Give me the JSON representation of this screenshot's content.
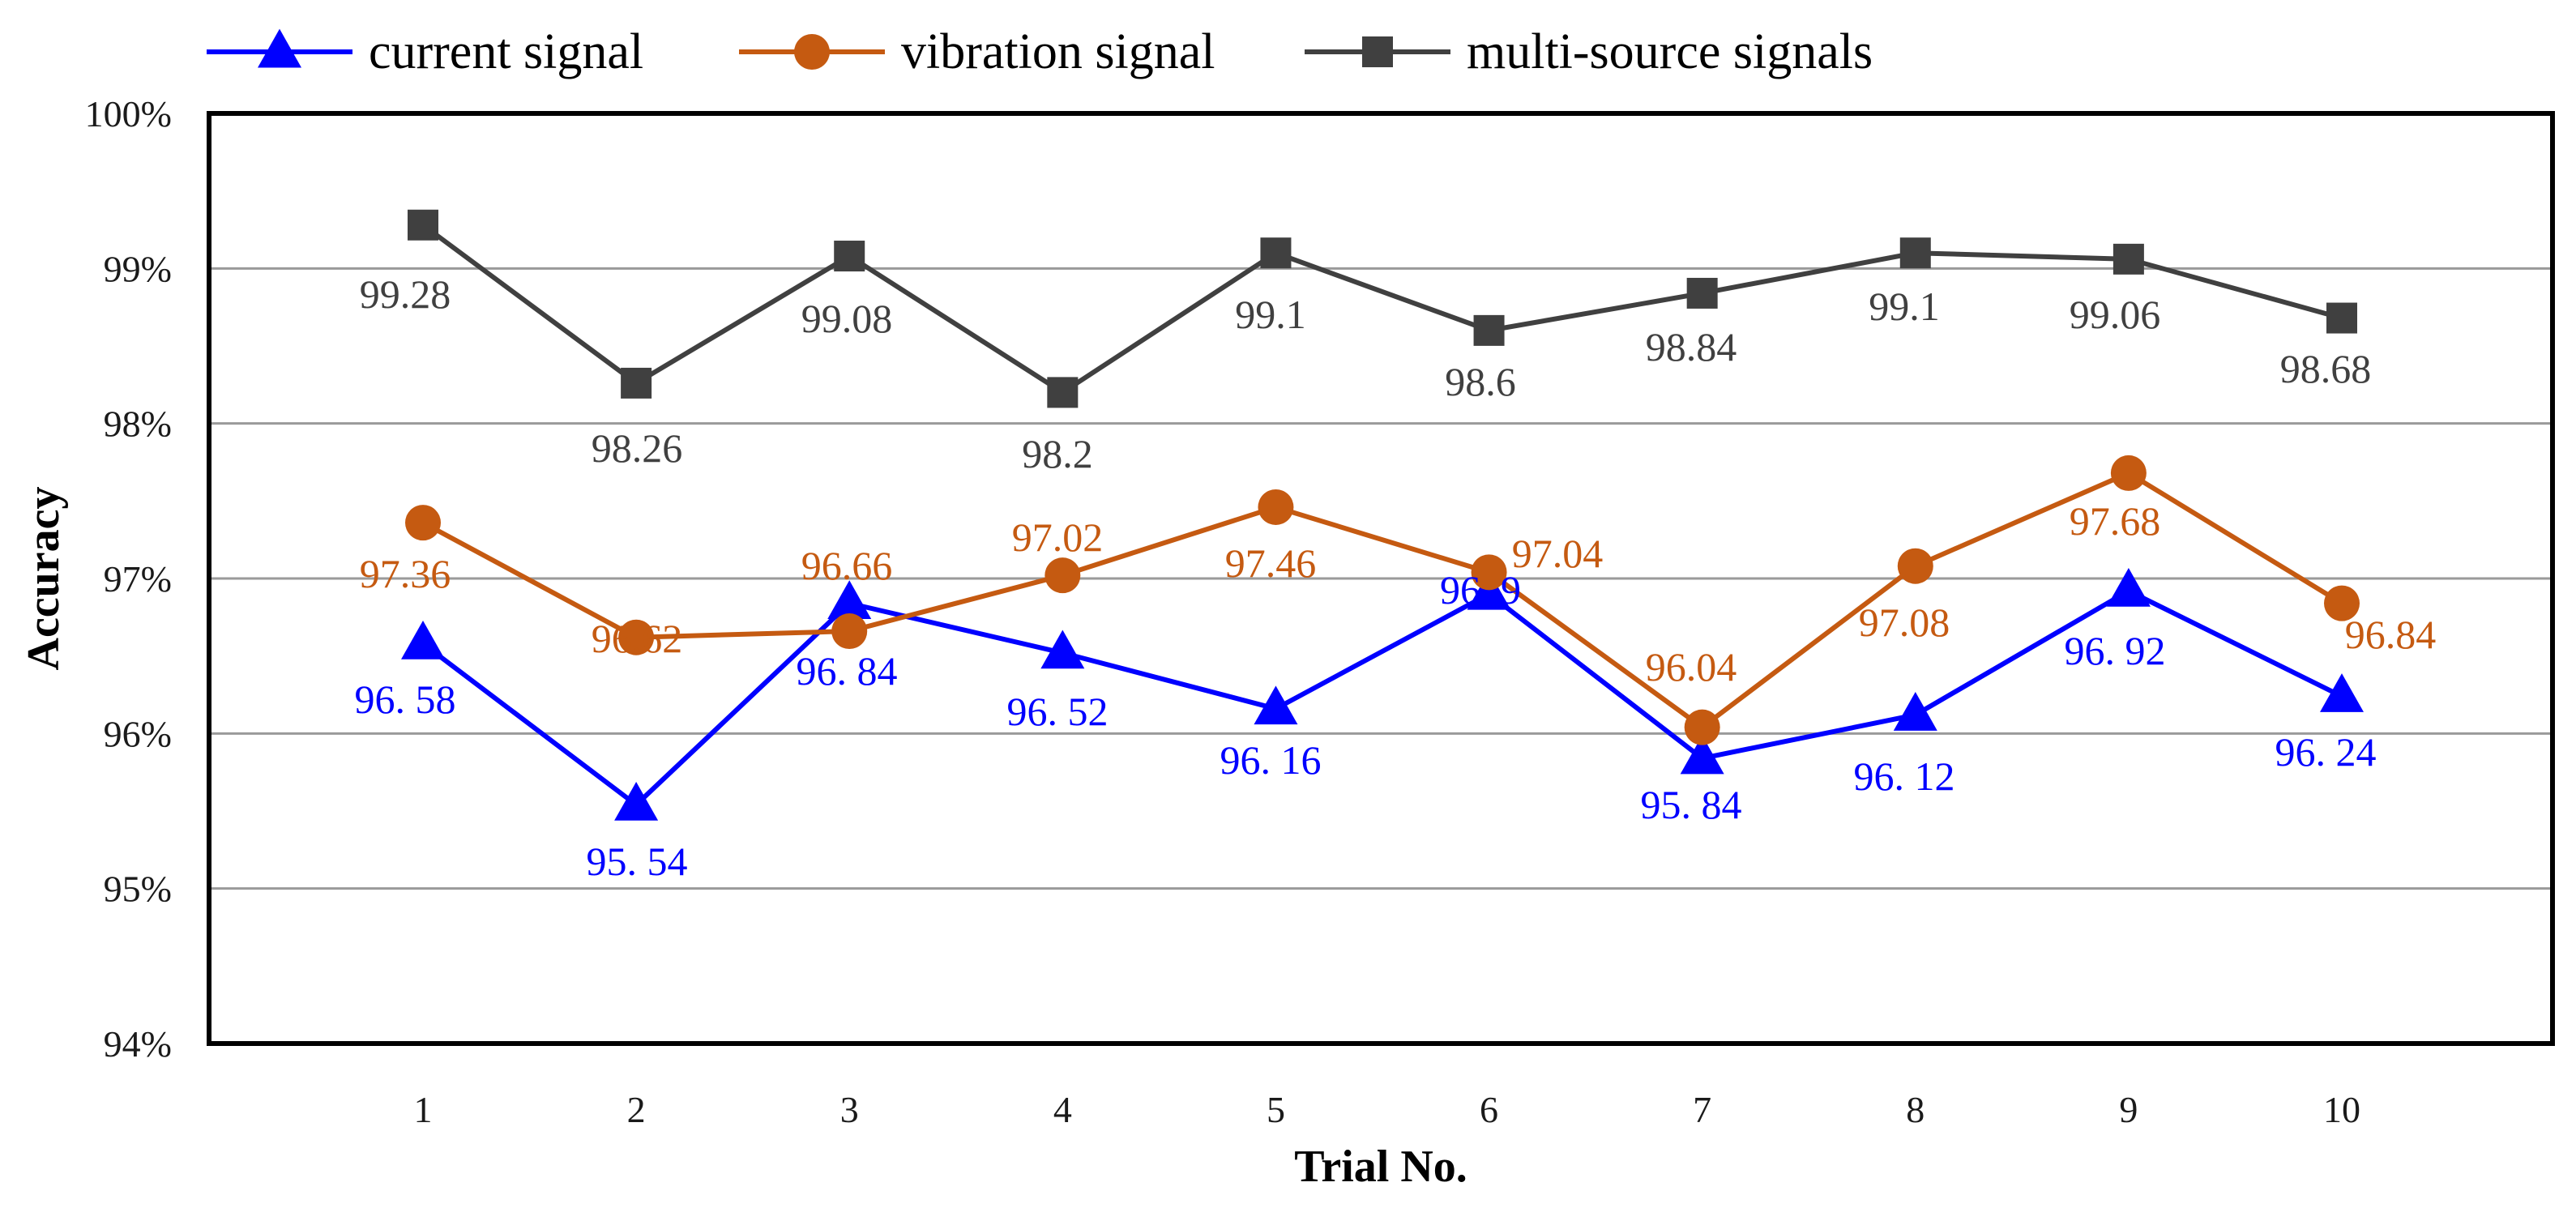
{
  "chart_data": {
    "type": "line",
    "title": "",
    "xlabel": "Trial No.",
    "ylabel": "Accuracy",
    "categories": [
      "1",
      "2",
      "3",
      "4",
      "5",
      "6",
      "7",
      "8",
      "9",
      "10"
    ],
    "y_ticks": [
      "94%",
      "95%",
      "96%",
      "97%",
      "98%",
      "99%",
      "100%"
    ],
    "ylim": [
      94,
      100
    ],
    "grid": true,
    "legend_position": "top",
    "series": [
      {
        "name": "current signal",
        "marker": "triangle",
        "color": "#0000ff",
        "values": [
          96.58,
          95.54,
          96.84,
          96.52,
          96.16,
          96.9,
          95.84,
          96.12,
          96.92,
          96.24
        ],
        "labels": [
          "96. 58",
          "95. 54",
          "96. 84",
          "96. 52",
          "96. 16",
          "96. 9",
          "95. 84",
          "96. 12",
          "96. 92",
          "96. 24"
        ]
      },
      {
        "name": "vibration signal",
        "marker": "circle",
        "color": "#c55a11",
        "values": [
          97.36,
          96.62,
          96.66,
          97.02,
          97.46,
          97.04,
          96.04,
          97.08,
          97.68,
          96.84
        ],
        "labels": [
          "97.36",
          "96.62",
          "96.66",
          "97.02",
          "97.46",
          "97.04",
          "96.04",
          "97.08",
          "97.68",
          "96.84"
        ]
      },
      {
        "name": "multi-source signals",
        "marker": "square",
        "color": "#404040",
        "values": [
          99.28,
          98.26,
          99.08,
          98.2,
          99.1,
          98.6,
          98.84,
          99.1,
          99.06,
          98.68
        ],
        "labels": [
          "99.28",
          "98.26",
          "99.08",
          "98.2",
          "99.1",
          "98.6",
          "98.84",
          "99.1",
          "99.06",
          "98.68"
        ]
      }
    ]
  }
}
